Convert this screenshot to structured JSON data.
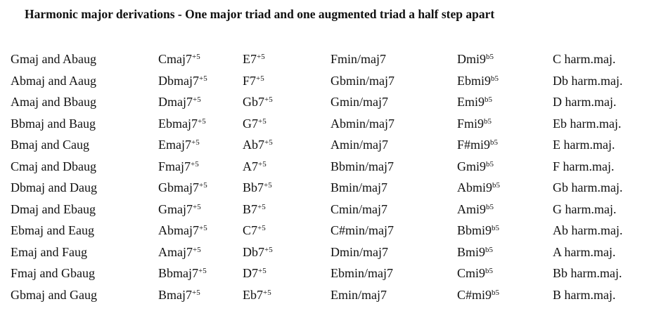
{
  "title": "Harmonic major derivations - One major triad and one augmented triad a half step apart",
  "rows": [
    [
      {
        "t": "Gmaj and Abaug"
      },
      {
        "t": "Cmaj7",
        "s": "+5"
      },
      {
        "t": "E7",
        "s": "+5"
      },
      {
        "t": "Fmin/maj7"
      },
      {
        "t": "Dmi9",
        "s": "b5"
      },
      {
        "t": "C harm.maj."
      }
    ],
    [
      {
        "t": "Abmaj and Aaug"
      },
      {
        "t": "Dbmaj7",
        "s": "+5"
      },
      {
        "t": "F7",
        "s": "+5"
      },
      {
        "t": "Gbmin/maj7"
      },
      {
        "t": "Ebmi9",
        "s": "b5"
      },
      {
        "t": "Db harm.maj."
      }
    ],
    [
      {
        "t": "Amaj and Bbaug"
      },
      {
        "t": "Dmaj7",
        "s": "+5"
      },
      {
        "t": "Gb7",
        "s": "+5"
      },
      {
        "t": "Gmin/maj7"
      },
      {
        "t": "Emi9",
        "s": "b5"
      },
      {
        "t": "D harm.maj."
      }
    ],
    [
      {
        "t": "Bbmaj and Baug"
      },
      {
        "t": "Ebmaj7",
        "s": "+5"
      },
      {
        "t": "G7",
        "s": "+5"
      },
      {
        "t": "Abmin/maj7"
      },
      {
        "t": "Fmi9",
        "s": "b5"
      },
      {
        "t": "Eb harm.maj."
      }
    ],
    [
      {
        "t": "Bmaj and Caug"
      },
      {
        "t": "Emaj7",
        "s": "+5"
      },
      {
        "t": "Ab7",
        "s": "+5"
      },
      {
        "t": "Amin/maj7"
      },
      {
        "t": "F#mi9",
        "s": "b5"
      },
      {
        "t": "E harm.maj."
      }
    ],
    [
      {
        "t": "Cmaj and Dbaug"
      },
      {
        "t": "Fmaj7",
        "s": "+5"
      },
      {
        "t": "A7",
        "s": "+5"
      },
      {
        "t": "Bbmin/maj7"
      },
      {
        "t": "Gmi9",
        "s": "b5"
      },
      {
        "t": "F harm.maj."
      }
    ],
    [
      {
        "t": "Dbmaj and Daug"
      },
      {
        "t": "Gbmaj7",
        "s": "+5"
      },
      {
        "t": "Bb7",
        "s": "+5"
      },
      {
        "t": "Bmin/maj7"
      },
      {
        "t": "Abmi9",
        "s": "b5"
      },
      {
        "t": "Gb harm.maj."
      }
    ],
    [
      {
        "t": "Dmaj and Ebaug"
      },
      {
        "t": "Gmaj7",
        "s": "+5"
      },
      {
        "t": "B7",
        "s": "+5"
      },
      {
        "t": "Cmin/maj7"
      },
      {
        "t": "Ami9",
        "s": "b5"
      },
      {
        "t": "G harm.maj."
      }
    ],
    [
      {
        "t": "Ebmaj and Eaug"
      },
      {
        "t": "Abmaj7",
        "s": "+5"
      },
      {
        "t": "C7",
        "s": "+5"
      },
      {
        "t": "C#min/maj7"
      },
      {
        "t": "Bbmi9",
        "s": "b5"
      },
      {
        "t": "Ab harm.maj."
      }
    ],
    [
      {
        "t": "Emaj and Faug"
      },
      {
        "t": "Amaj7",
        "s": "+5"
      },
      {
        "t": "Db7",
        "s": "+5"
      },
      {
        "t": "Dmin/maj7"
      },
      {
        "t": "Bmi9",
        "s": "b5"
      },
      {
        "t": "A harm.maj."
      }
    ],
    [
      {
        "t": "Fmaj and Gbaug"
      },
      {
        "t": "Bbmaj7",
        "s": "+5"
      },
      {
        "t": "D7",
        "s": "+5"
      },
      {
        "t": "Ebmin/maj7"
      },
      {
        "t": "Cmi9",
        "s": "b5"
      },
      {
        "t": "Bb harm.maj."
      }
    ],
    [
      {
        "t": "Gbmaj and Gaug"
      },
      {
        "t": "Bmaj7",
        "s": "+5"
      },
      {
        "t": "Eb7",
        "s": "+5"
      },
      {
        "t": "Emin/maj7"
      },
      {
        "t": "C#mi9",
        "s": "b5"
      },
      {
        "t": "B harm.maj."
      }
    ]
  ]
}
